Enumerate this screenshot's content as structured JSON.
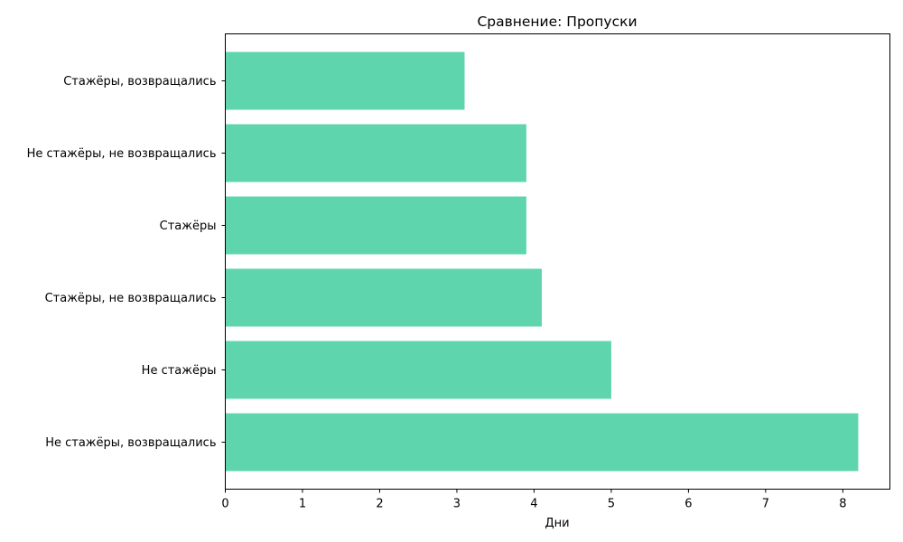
{
  "chart_data": {
    "type": "bar",
    "orientation": "horizontal",
    "title": "Сравнение: Пропуски",
    "xlabel": "Дни",
    "ylabel": "",
    "categories": [
      "Стажёры, возвращались",
      "Не стажёры, не возвращались",
      "Стажёры",
      "Стажёры, не возвращались",
      "Не стажёры",
      "Не стажёры, возвращались"
    ],
    "values": [
      3.1,
      3.9,
      3.9,
      4.1,
      5.0,
      8.2
    ],
    "xlim": [
      0,
      8.61
    ],
    "xticks": [
      "0",
      "1",
      "2",
      "3",
      "4",
      "5",
      "6",
      "7",
      "8"
    ],
    "grid": false,
    "bar_color": "#5fd5ae"
  }
}
